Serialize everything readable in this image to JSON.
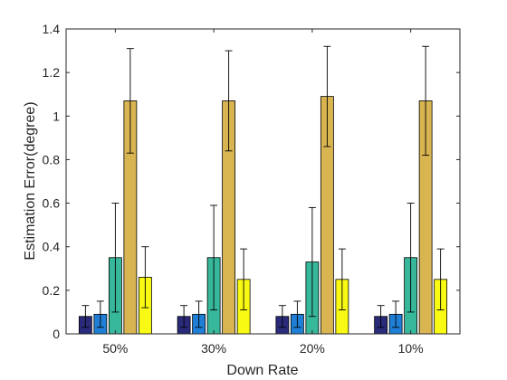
{
  "chart_data": {
    "type": "bar",
    "categories": [
      "50%",
      "30%",
      "20%",
      "10%"
    ],
    "xlabel": "Down Rate",
    "ylabel": "Estimation Error(degree)",
    "ylim": [
      0,
      1.4
    ],
    "yticks": [
      "0",
      "0.2",
      "0.4",
      "0.6",
      "0.8",
      "1",
      "1.2",
      "1.4"
    ],
    "grid": false,
    "legend": "none",
    "series": [
      {
        "color": "#2a2a7a",
        "values": [
          0.08,
          0.08,
          0.08,
          0.08
        ],
        "err_low": [
          0.03,
          0.03,
          0.03,
          0.03
        ],
        "err_high": [
          0.13,
          0.13,
          0.13,
          0.13
        ]
      },
      {
        "color": "#1f7fd6",
        "values": [
          0.09,
          0.09,
          0.09,
          0.09
        ],
        "err_low": [
          0.03,
          0.03,
          0.03,
          0.03
        ],
        "err_high": [
          0.15,
          0.15,
          0.15,
          0.15
        ]
      },
      {
        "color": "#38b89a",
        "values": [
          0.35,
          0.35,
          0.33,
          0.35
        ],
        "err_low": [
          0.1,
          0.11,
          0.08,
          0.1
        ],
        "err_high": [
          0.6,
          0.59,
          0.58,
          0.6
        ]
      },
      {
        "color": "#d9b552",
        "values": [
          1.07,
          1.07,
          1.09,
          1.07
        ],
        "err_low": [
          0.83,
          0.84,
          0.86,
          0.82
        ],
        "err_high": [
          1.31,
          1.3,
          1.32,
          1.32
        ]
      },
      {
        "color": "#f9fa14",
        "values": [
          0.26,
          0.25,
          0.25,
          0.25
        ],
        "err_low": [
          0.12,
          0.11,
          0.11,
          0.11
        ],
        "err_high": [
          0.4,
          0.39,
          0.39,
          0.39
        ]
      }
    ]
  }
}
